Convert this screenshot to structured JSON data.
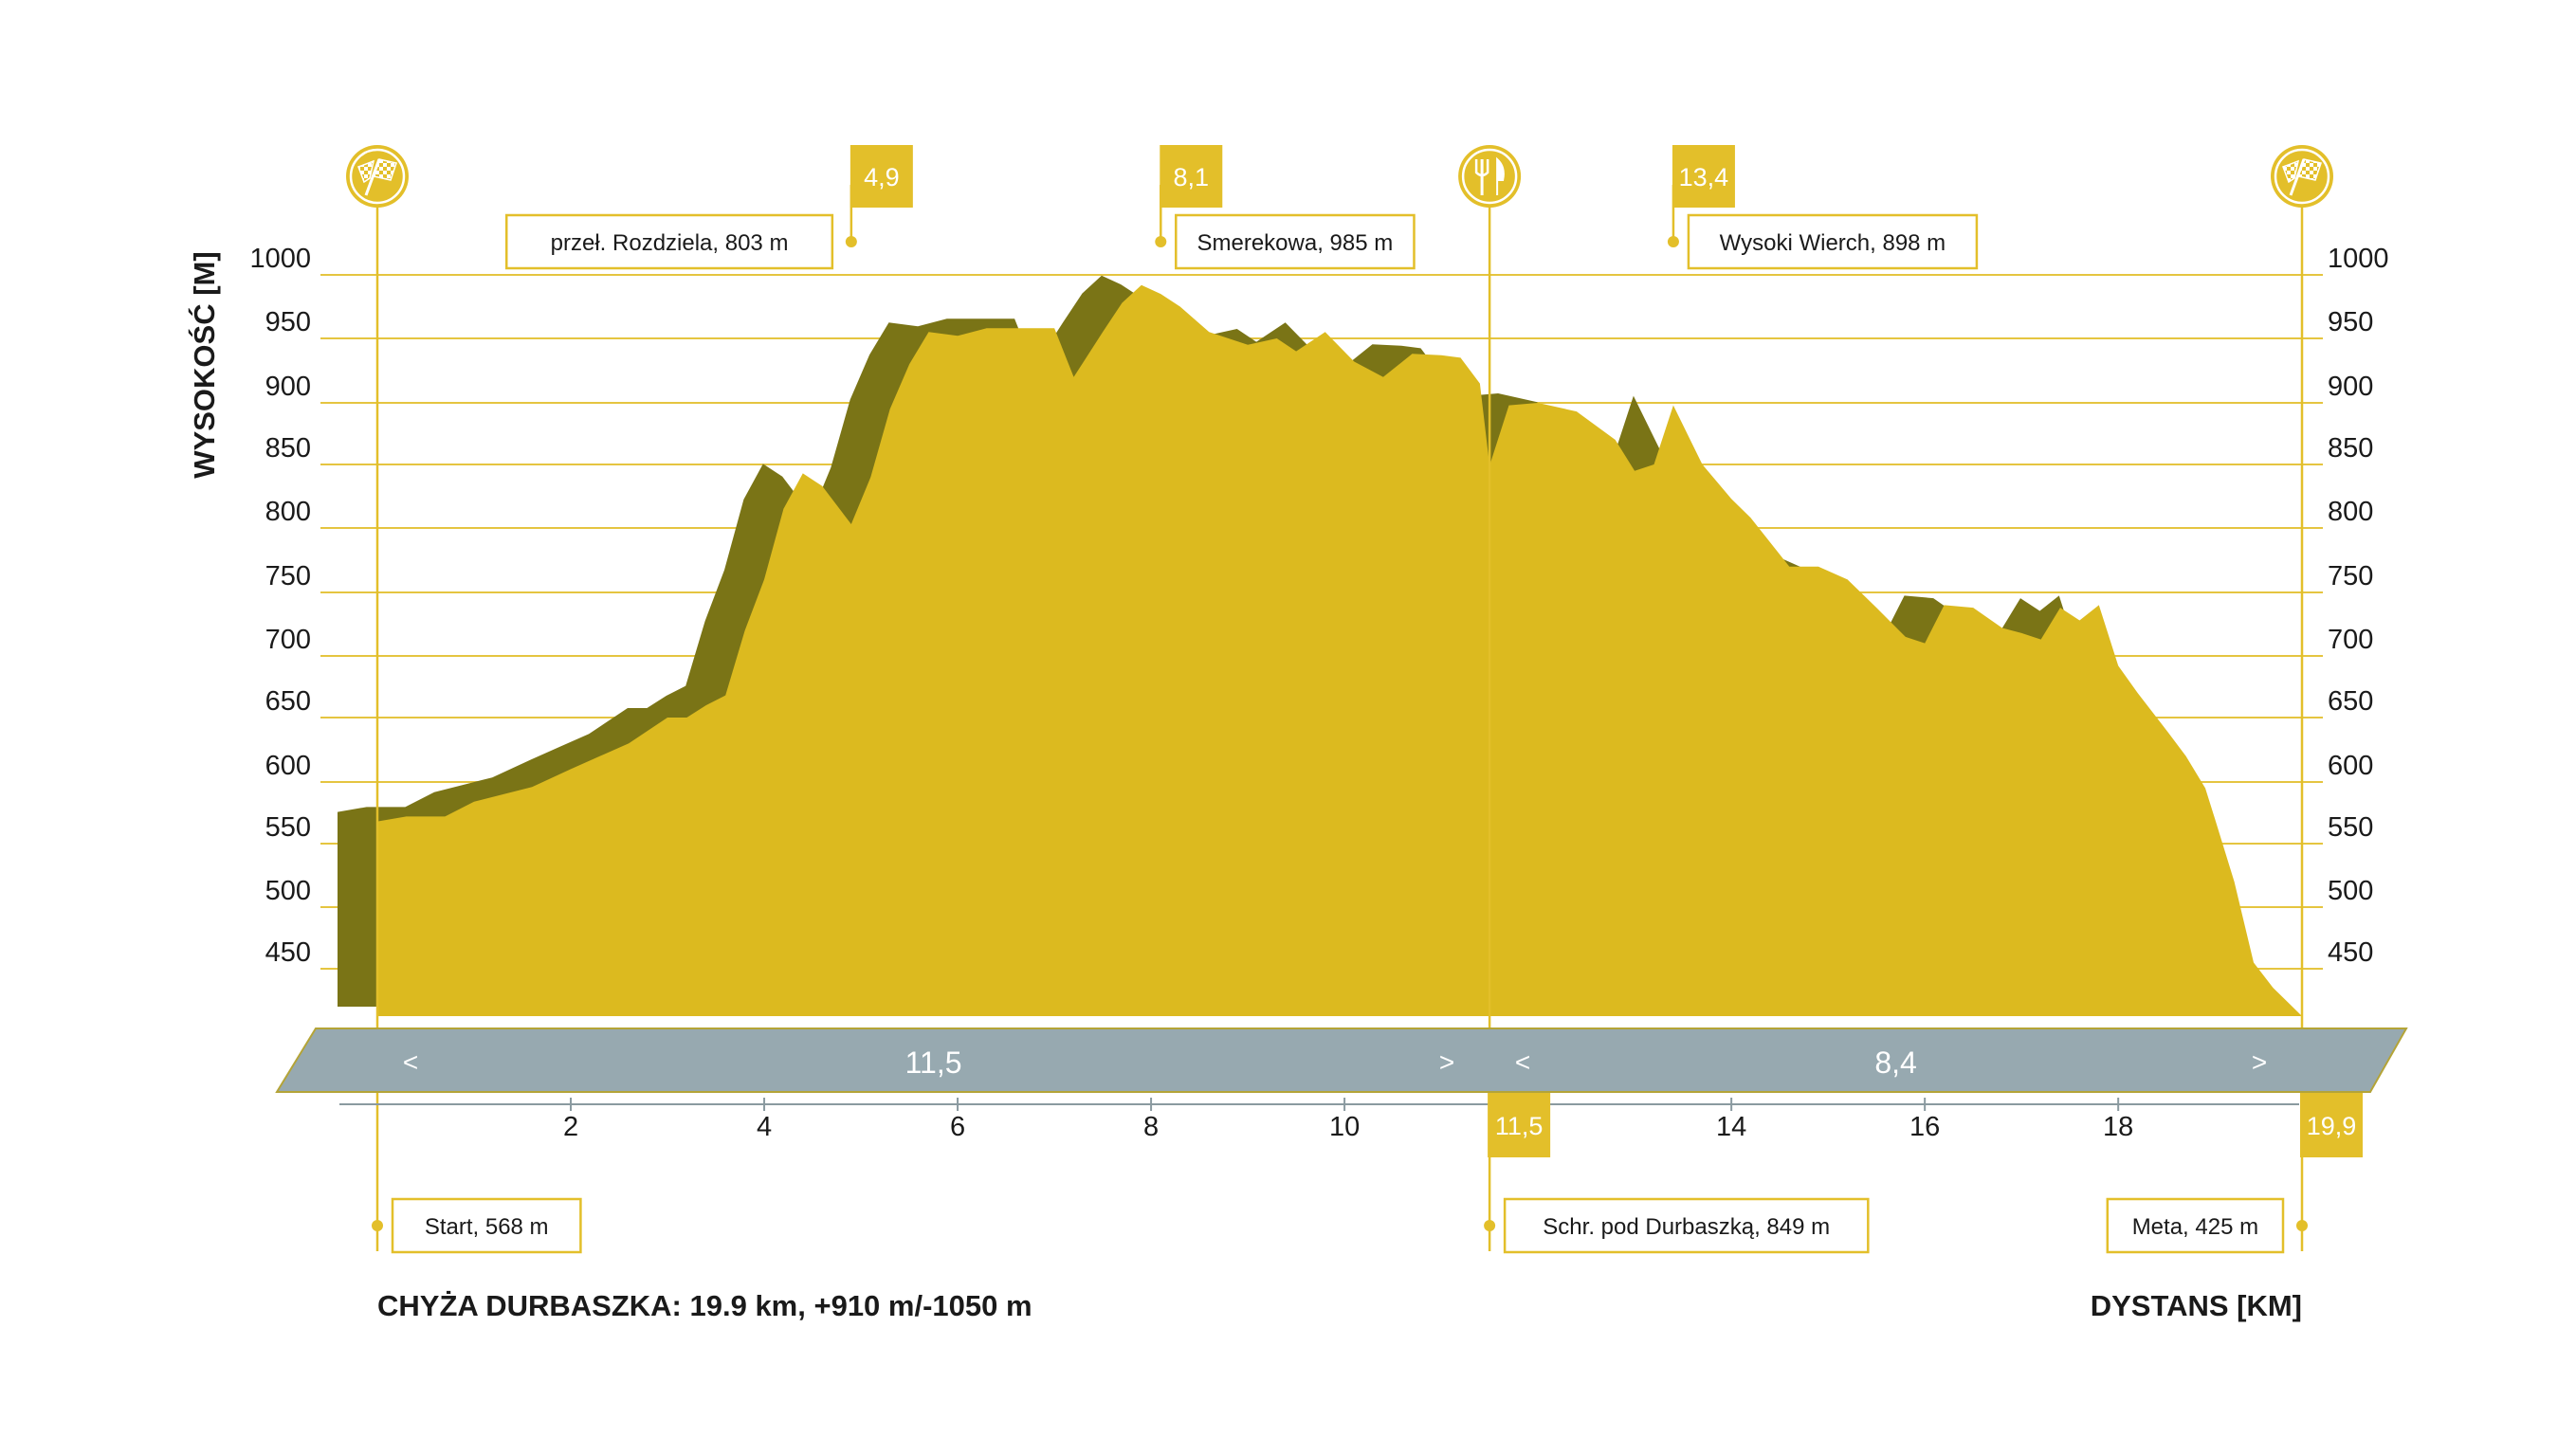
{
  "chart_data": {
    "type": "area",
    "title": "CHYŻA DURBASZKA: 19.9 km, +910 m/-1050 m",
    "xlabel": "DYSTANS [KM]",
    "ylabel": "WYSOKOŚĆ [M]",
    "xlim": [
      0,
      19.9
    ],
    "ylim": [
      425,
      1000
    ],
    "x_ticks": [
      2,
      4,
      6,
      8,
      10,
      14,
      16,
      18
    ],
    "y_ticks": [
      1000,
      950,
      900,
      850,
      800,
      750,
      700,
      650,
      600,
      550,
      500,
      450
    ],
    "grid": true,
    "series": [
      {
        "x": [
          0,
          0.3,
          0.7,
          1.0,
          1.3,
          1.6,
          2.0,
          2.3,
          2.6,
          3.0,
          3.2,
          3.4,
          3.6,
          3.8,
          4.0,
          4.2,
          4.4,
          4.6,
          4.9,
          5.1,
          5.3,
          5.5,
          5.7,
          6.0,
          6.3,
          6.6,
          7.0,
          7.2,
          7.5,
          7.7,
          7.9,
          8.1,
          8.3,
          8.6,
          9.0,
          9.3,
          9.5,
          9.8,
          10.1,
          10.4,
          10.7,
          11.0,
          11.2,
          11.4,
          11.5,
          11.7,
          12.0,
          12.4,
          12.8,
          13.0,
          13.2,
          13.4,
          13.7,
          14.0,
          14.2,
          14.6,
          14.9,
          15.2,
          15.5,
          15.8,
          16.0,
          16.2,
          16.5,
          16.8,
          17.0,
          17.2,
          17.4,
          17.6,
          17.8,
          18.0,
          18.2,
          18.5,
          18.7,
          18.9,
          19.0,
          19.2,
          19.4,
          19.6,
          19.9
        ],
        "y": [
          568,
          572,
          572,
          584,
          590,
          596,
          610,
          620,
          630,
          650,
          650,
          660,
          668,
          720,
          760,
          815,
          843,
          833,
          803,
          840,
          895,
          930,
          955,
          952,
          958,
          958,
          958,
          920,
          955,
          978,
          992,
          985,
          975,
          955,
          945,
          950,
          940,
          955,
          932,
          920,
          938,
          937,
          935,
          915,
          849,
          898,
          900,
          893,
          870,
          845,
          850,
          898,
          850,
          823,
          808,
          770,
          770,
          760,
          738,
          715,
          710,
          740,
          738,
          722,
          718,
          713,
          738,
          728,
          740,
          692,
          670,
          640,
          620,
          595,
          570,
          520,
          455,
          440,
          425
        ]
      }
    ],
    "waypoint_markers": [
      "4,9",
      "8,1",
      "13,4"
    ],
    "waypoints": [
      {
        "x": 0,
        "label": "Start, 568 m"
      },
      {
        "x": 4.9,
        "label": "przeł. Rozdziela, 803 m"
      },
      {
        "x": 8.1,
        "label": "Smerekowa, 985 m"
      },
      {
        "x": 11.5,
        "label": "Schr. pod Durbaszką, 849 m"
      },
      {
        "x": 13.4,
        "label": "Wysoki Wierch, 898 m"
      },
      {
        "x": 19.9,
        "label": "Meta, 425 m"
      }
    ],
    "bottom_markers": [
      "11,5",
      "19,9"
    ],
    "segments": [
      {
        "label": "11,5",
        "left": "<",
        "right": ">"
      },
      {
        "label": "8,4",
        "left": "<",
        "right": ">"
      }
    ]
  },
  "colors": {
    "fill": "#dcba1f",
    "shadow": "#7a7416",
    "accent": "#e3bf2a",
    "band": "#97a9b0",
    "grid": "#e5c540",
    "text": "#1a1a1a"
  },
  "icons": {
    "start": "checkered-flag-icon",
    "food": "fork-knife-icon",
    "finish": "checkered-flag-icon"
  }
}
